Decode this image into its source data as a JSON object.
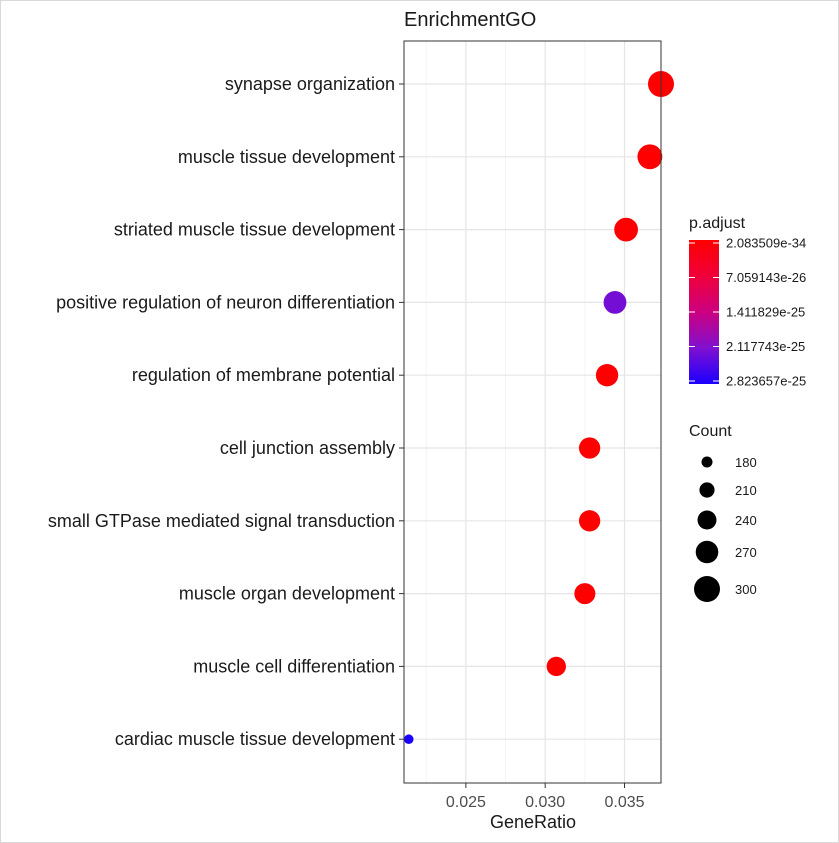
{
  "chart_data": {
    "type": "dotplot",
    "title": "EnrichmentGO",
    "xlabel": "GeneRatio",
    "ylabel": "",
    "xlim": [
      0.0211,
      0.0373
    ],
    "xticks": [
      0.025,
      0.03,
      0.035
    ],
    "xtick_labels": [
      "0.025",
      "0.030",
      "0.035"
    ],
    "grid": true,
    "points": [
      {
        "term": "synapse organization",
        "gene_ratio": 0.0373,
        "count": 300,
        "p_adjust": 2.083509e-34
      },
      {
        "term": "muscle tissue development",
        "gene_ratio": 0.0366,
        "count": 290,
        "p_adjust": 3e-32
      },
      {
        "term": "striated muscle tissue development",
        "gene_ratio": 0.0351,
        "count": 280,
        "p_adjust": 3e-32
      },
      {
        "term": "positive regulation of neuron differentiation",
        "gene_ratio": 0.0344,
        "count": 272,
        "p_adjust": 2.2e-25
      },
      {
        "term": "regulation of membrane potential",
        "gene_ratio": 0.0339,
        "count": 268,
        "p_adjust": 1e-30
      },
      {
        "term": "cell junction assembly",
        "gene_ratio": 0.0328,
        "count": 259,
        "p_adjust": 1e-30
      },
      {
        "term": "small GTPase mediated signal transduction",
        "gene_ratio": 0.0328,
        "count": 259,
        "p_adjust": 1e-30
      },
      {
        "term": "muscle organ development",
        "gene_ratio": 0.0325,
        "count": 257,
        "p_adjust": 1e-31
      },
      {
        "term": "muscle cell differentiation",
        "gene_ratio": 0.0307,
        "count": 243,
        "p_adjust": 1e-30
      },
      {
        "term": "cardiac muscle tissue development",
        "gene_ratio": 0.0214,
        "count": 170,
        "p_adjust": 2.823657e-25
      }
    ],
    "color_legend": {
      "title": "p.adjust",
      "labels": [
        "2.083509e-34",
        "7.059143e-26",
        "1.411829e-25",
        "2.117743e-25",
        "2.823657e-25"
      ],
      "low_color": "#ff0000",
      "high_color": "#0000ff"
    },
    "size_legend": {
      "title": "Count",
      "values": [
        180,
        210,
        240,
        270,
        300
      ],
      "labels": [
        "180",
        "210",
        "240",
        "270",
        "300"
      ]
    },
    "legend_placement": "right"
  }
}
